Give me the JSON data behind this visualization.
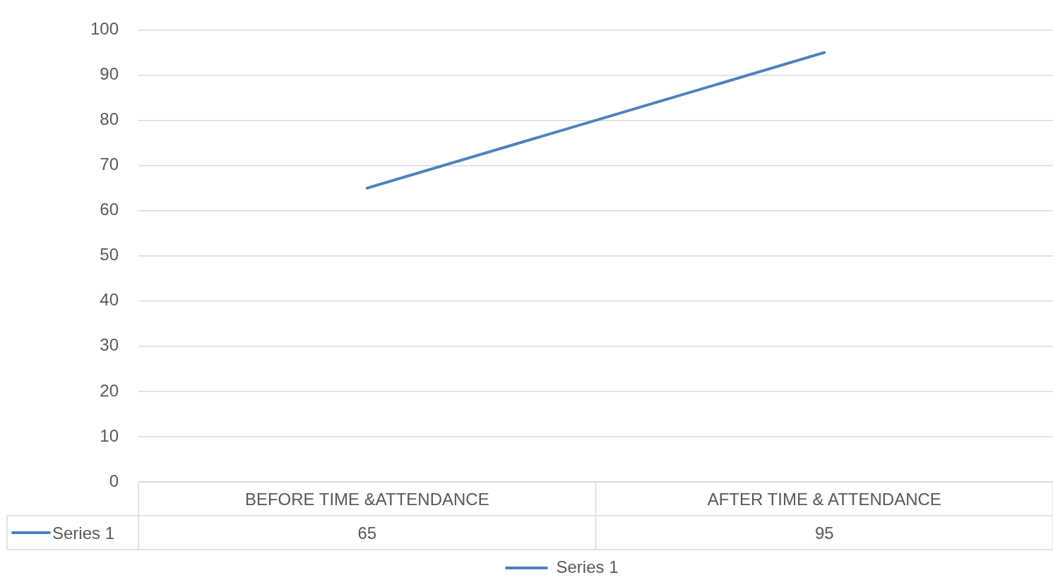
{
  "chart_data": {
    "type": "line",
    "categories": [
      "BEFORE TIME &ATTENDANCE",
      "AFTER TIME & ATTENDANCE"
    ],
    "series": [
      {
        "name": "Series 1",
        "color": "#4f81bd",
        "values": [
          65,
          95
        ]
      }
    ],
    "ylim": [
      0,
      100
    ],
    "yticks": [
      0,
      10,
      20,
      30,
      40,
      50,
      60,
      70,
      80,
      90,
      100
    ],
    "grid": "y",
    "legend": "bottom",
    "data_labels": true
  }
}
